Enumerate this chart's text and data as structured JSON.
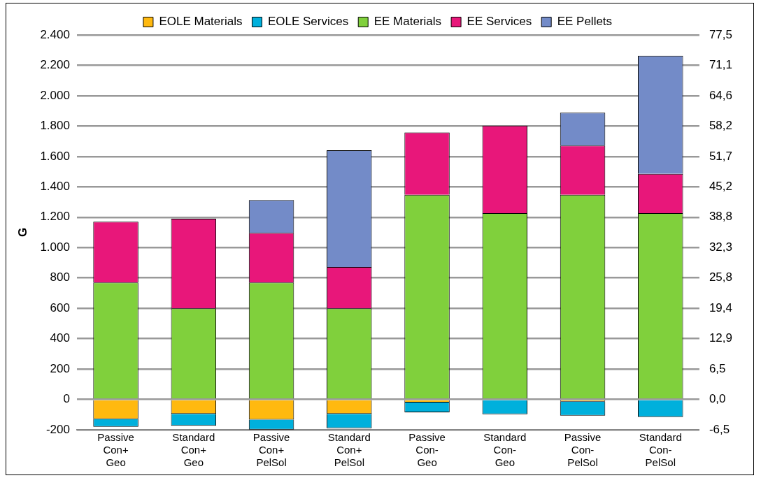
{
  "chart_data": {
    "type": "bar",
    "stacked": true,
    "ylabel": "G",
    "categories": [
      "Passive Con+ Geo",
      "Standard Con+ Geo",
      "Passive Con+ PelSol",
      "Standard Con+ PelSol",
      "Passive Con- Geo",
      "Standard Con- Geo",
      "Passive Con- PelSol",
      "Standard Con- PelSol"
    ],
    "series": [
      {
        "name": "EOLE Materials",
        "color": "#ffb90f",
        "values": [
          -130,
          -95,
          -133,
          -95,
          -20,
          0,
          -15,
          0
        ]
      },
      {
        "name": "EOLE Services",
        "color": "#00b0dc",
        "values": [
          -50,
          -78,
          -66,
          -95,
          -65,
          -98,
          -92,
          -116
        ]
      },
      {
        "name": "EE Materials",
        "color": "#80d03c",
        "values": [
          770,
          600,
          770,
          600,
          1347,
          1226,
          1347,
          1226
        ]
      },
      {
        "name": "EE Services",
        "color": "#e8177a",
        "values": [
          400,
          590,
          327,
          272,
          411,
          577,
          325,
          259
        ]
      },
      {
        "name": "EE Pellets",
        "color": "#738bc8",
        "values": [
          0,
          0,
          216,
          769,
          0,
          0,
          216,
          778
        ]
      }
    ],
    "ylim": [
      -200,
      2400
    ],
    "yticks": [
      {
        "value": -200,
        "label": "-200"
      },
      {
        "value": 0,
        "label": "0"
      },
      {
        "value": 200,
        "label": "200"
      },
      {
        "value": 400,
        "label": "400"
      },
      {
        "value": 600,
        "label": "600"
      },
      {
        "value": 800,
        "label": "800"
      },
      {
        "value": 1000,
        "label": "1.000"
      },
      {
        "value": 1200,
        "label": "1.200"
      },
      {
        "value": 1400,
        "label": "1.400"
      },
      {
        "value": 1600,
        "label": "1.600"
      },
      {
        "value": 1800,
        "label": "1.800"
      },
      {
        "value": 2000,
        "label": "2.000"
      },
      {
        "value": 2200,
        "label": "2.200"
      },
      {
        "value": 2400,
        "label": "2.400"
      }
    ],
    "y2lim": [
      -6.458,
      77.5
    ],
    "y2ticks": [
      {
        "value": -6.458,
        "label": "-6,5"
      },
      {
        "value": 0,
        "label": "0,0"
      },
      {
        "value": 6.458,
        "label": "6,5"
      },
      {
        "value": 12.917,
        "label": "12,9"
      },
      {
        "value": 19.375,
        "label": "19,4"
      },
      {
        "value": 25.833,
        "label": "25,8"
      },
      {
        "value": 32.292,
        "label": "32,3"
      },
      {
        "value": 38.75,
        "label": "38,8"
      },
      {
        "value": 45.208,
        "label": "45,2"
      },
      {
        "value": 51.667,
        "label": "51,7"
      },
      {
        "value": 58.2,
        "label": "58,2"
      },
      {
        "value": 64.583,
        "label": "64,6"
      },
      {
        "value": 71.1,
        "label": "71,1"
      },
      {
        "value": 77.5,
        "label": "77,5"
      }
    ],
    "grid": "y",
    "legend": "top"
  }
}
